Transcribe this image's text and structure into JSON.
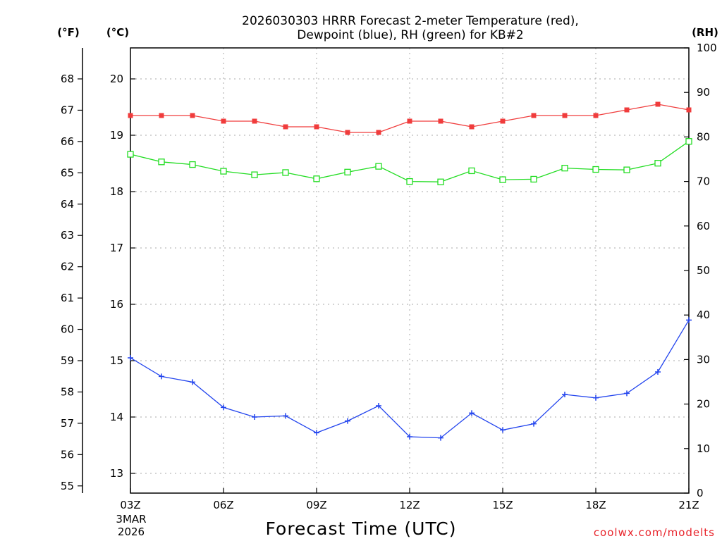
{
  "chart_data": {
    "type": "line",
    "title_lines": [
      "2026030303 HRRR Forecast 2-meter Temperature (red),",
      "Dewpoint (blue), RH (green) for KB#2"
    ],
    "xlabel": "Forecast Time (UTC)",
    "x": [
      0,
      1,
      2,
      3,
      4,
      5,
      6,
      7,
      8,
      9,
      10,
      11,
      12,
      13,
      14,
      15,
      16,
      17,
      18
    ],
    "xlim": [
      0,
      18
    ],
    "x_ticks": [
      {
        "x": 0,
        "label": "03Z"
      },
      {
        "x": 3,
        "label": "06Z"
      },
      {
        "x": 6,
        "label": "09Z"
      },
      {
        "x": 9,
        "label": "12Z"
      },
      {
        "x": 12,
        "label": "15Z"
      },
      {
        "x": 15,
        "label": "18Z"
      },
      {
        "x": 18,
        "label": "21Z"
      }
    ],
    "start_date_lines": [
      "3MAR",
      "2026"
    ],
    "axis_celsius": {
      "unit": "(°C)",
      "ylim": [
        12.65,
        20.55
      ],
      "ticks": [
        13,
        14,
        15,
        16,
        17,
        18,
        19,
        20
      ]
    },
    "axis_fahrenheit": {
      "unit": "(°F)",
      "ylim": [
        54.77,
        68.99
      ],
      "ticks": [
        55,
        56,
        57,
        58,
        59,
        60,
        61,
        62,
        63,
        64,
        65,
        66,
        67,
        68
      ]
    },
    "axis_rh": {
      "unit": "(RH)",
      "ylim": [
        0,
        100
      ],
      "ticks": [
        0,
        10,
        20,
        30,
        40,
        50,
        60,
        70,
        80,
        90,
        100
      ]
    },
    "series": [
      {
        "name": "2-meter Temperature",
        "axis": "celsius",
        "color": "#f03c3c",
        "marker": "filled-square",
        "values": [
          19.35,
          19.35,
          19.35,
          19.25,
          19.25,
          19.15,
          19.15,
          19.05,
          19.05,
          19.25,
          19.25,
          19.15,
          19.25,
          19.35,
          19.35,
          19.35,
          19.45,
          19.55,
          19.45
        ]
      },
      {
        "name": "Dewpoint",
        "axis": "celsius",
        "color": "#2244ee",
        "marker": "plus",
        "values": [
          15.05,
          14.72,
          14.62,
          14.17,
          14.0,
          14.02,
          13.72,
          13.93,
          14.2,
          13.65,
          13.63,
          14.07,
          13.77,
          13.88,
          14.4,
          14.34,
          14.42,
          14.8,
          15.72
        ]
      },
      {
        "name": "RH",
        "axis": "rh",
        "color": "#22dd22",
        "marker": "open-square",
        "values": [
          76.1,
          74.4,
          73.8,
          72.3,
          71.5,
          72.0,
          70.6,
          72.1,
          73.4,
          70.0,
          69.9,
          72.4,
          70.4,
          70.5,
          73.0,
          72.7,
          72.6,
          74.1,
          79.0
        ]
      }
    ],
    "grid": true,
    "grid_color": "#aaaaaa"
  },
  "credit": "coolwx.com/modelts"
}
